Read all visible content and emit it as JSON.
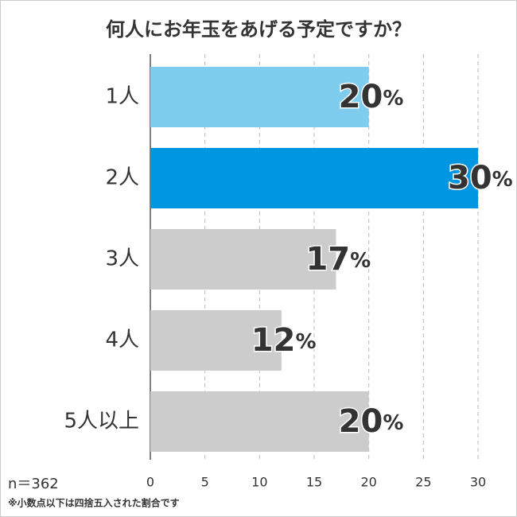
{
  "chart_data": {
    "type": "hbar",
    "title": "何人にお年玉をあげる予定ですか？",
    "categories": [
      "1人",
      "2人",
      "3人",
      "4人",
      "5人以上"
    ],
    "values": [
      20,
      30,
      17,
      12,
      20
    ],
    "value_labels": [
      "20%",
      "30%",
      "17%",
      "12%",
      "20%"
    ],
    "colors": [
      "#7fcdee",
      "#0096e1",
      "#cccccc",
      "#cccccc",
      "#cccccc"
    ],
    "label_colors": [
      "#1b70b3",
      "#1b70b3",
      "#333333",
      "#333333",
      "#333333"
    ],
    "xlim": [
      0,
      30
    ],
    "xticks": [
      0,
      5,
      10,
      15,
      20,
      25,
      30
    ],
    "grid": true,
    "sample_size": "n＝362",
    "note": "※小数点以下は四捨五入された割合です"
  }
}
